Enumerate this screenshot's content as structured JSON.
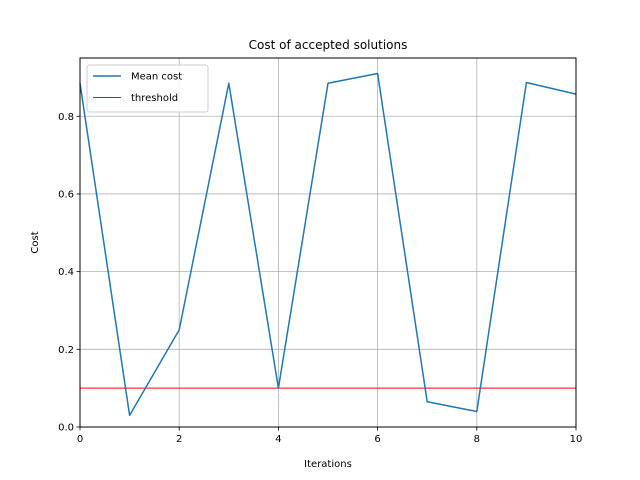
{
  "chart_data": {
    "type": "line",
    "title": "Cost of accepted solutions",
    "xlabel": "Iterations",
    "ylabel": "Cost",
    "xlim": [
      0,
      10
    ],
    "ylim": [
      0,
      0.95
    ],
    "xticks": [
      0,
      2,
      4,
      6,
      8,
      10
    ],
    "yticks": [
      0.0,
      0.2,
      0.4,
      0.6,
      0.8
    ],
    "xtick_labels": [
      "0",
      "2",
      "4",
      "6",
      "8",
      "10"
    ],
    "ytick_labels": [
      "0.0",
      "0.2",
      "0.4",
      "0.6",
      "0.8"
    ],
    "grid": true,
    "legend_position": "top-left",
    "series": [
      {
        "name": "Mean cost",
        "color": "#1f77b4",
        "x": [
          0,
          1,
          2,
          3,
          4,
          5,
          6,
          7,
          8,
          9,
          10
        ],
        "y": [
          0.885,
          0.03,
          0.25,
          0.885,
          0.1,
          0.885,
          0.91,
          0.065,
          0.04,
          0.887,
          0.857
        ]
      }
    ],
    "hlines": [
      {
        "name": "threshold",
        "color": "#ff0000",
        "y": 0.1
      }
    ]
  }
}
